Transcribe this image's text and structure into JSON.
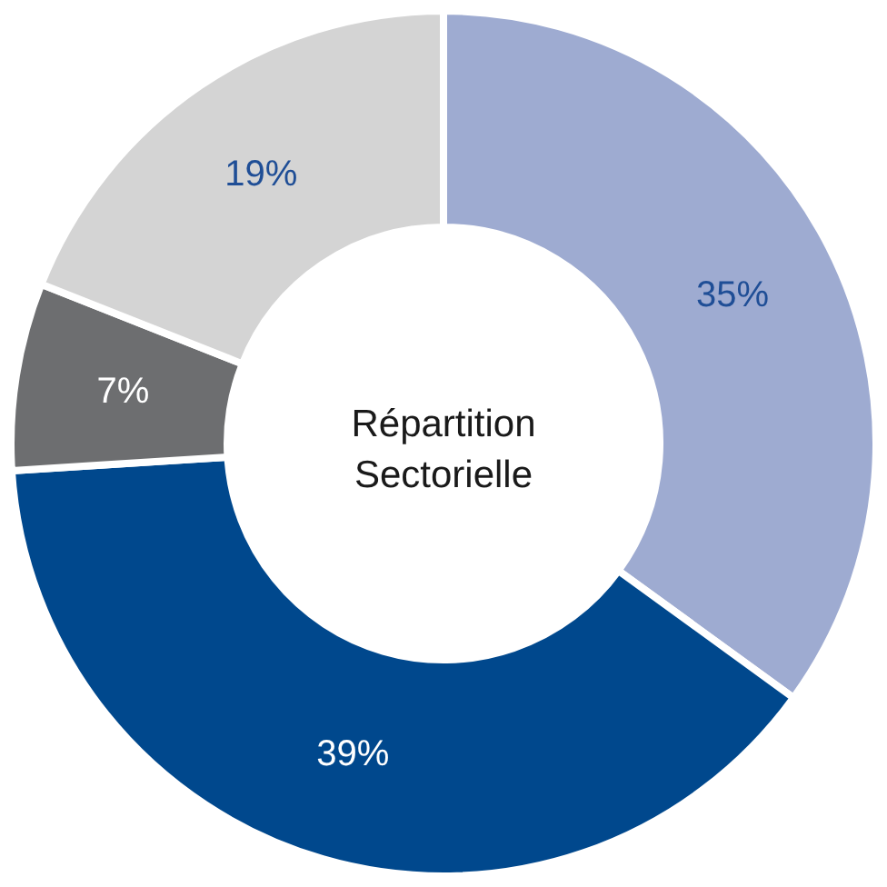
{
  "chart_data": {
    "type": "donut",
    "title": "Répartition Sectorielle",
    "categories": [
      null,
      null,
      null,
      null
    ],
    "values": [
      35,
      39,
      7,
      19
    ],
    "colors": [
      "#9eabd1",
      "#00488d",
      "#6d6e70",
      "#d4d4d4"
    ],
    "value_labels": [
      "35%",
      "39%",
      "7%",
      "19%"
    ],
    "legend": false
  }
}
